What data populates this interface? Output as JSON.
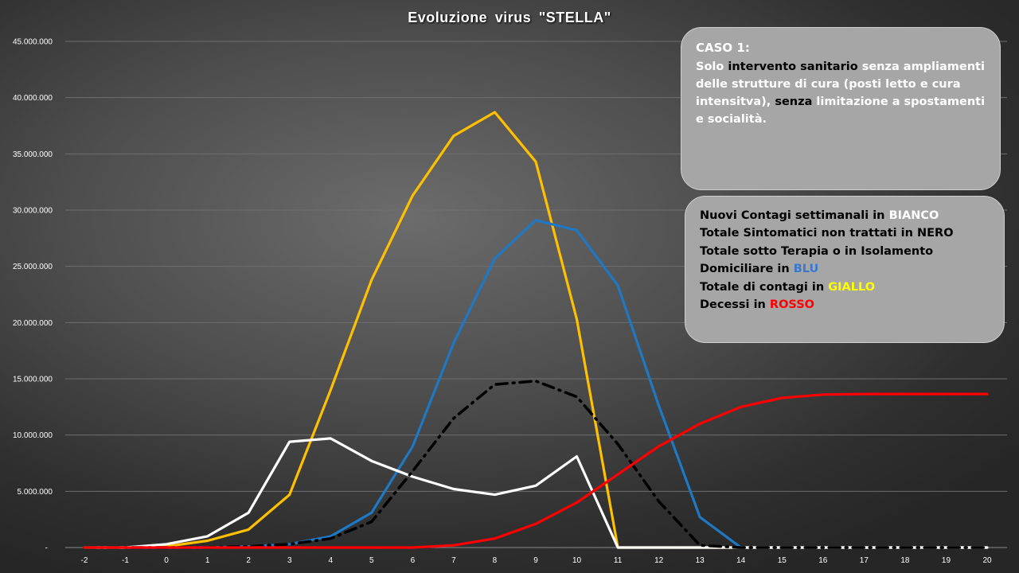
{
  "chart_data": {
    "type": "line",
    "title": "Evoluzione  virus  \"STELLA\"",
    "xlabel": "",
    "ylabel": "",
    "x": [
      -2,
      -1,
      0,
      1,
      2,
      3,
      4,
      5,
      6,
      7,
      8,
      9,
      10,
      11,
      12,
      13,
      14,
      15,
      16,
      17,
      18,
      19,
      20
    ],
    "x_ticks": [
      "-2",
      "-1",
      "0",
      "1",
      "2",
      "3",
      "4",
      "5",
      "6",
      "7",
      "8",
      "9",
      "10",
      "11",
      "12",
      "13",
      "14",
      "15",
      "16",
      "17",
      "18",
      "19",
      "20"
    ],
    "ylim": [
      0,
      45000000
    ],
    "y_ticks": [
      "-",
      "5.000.000",
      "10.000.000",
      "15.000.000",
      "20.000.000",
      "25.000.000",
      "30.000.000",
      "35.000.000",
      "40.000.000",
      "45.000.000"
    ],
    "grid": true,
    "series": [
      {
        "color": "#ffc000",
        "style": "solid",
        "values": [
          0,
          0,
          100000,
          600000,
          1600000,
          4700000,
          14000000,
          23800000,
          31300000,
          36600000,
          38700000,
          34300000,
          20300000,
          0,
          0,
          0,
          0,
          0,
          0,
          0,
          0,
          0,
          0
        ]
      },
      {
        "color": "#1f78c4",
        "style": "solid",
        "values": [
          0,
          0,
          0,
          0,
          100000,
          300000,
          1000000,
          3100000,
          9000000,
          18200000,
          25700000,
          29100000,
          28200000,
          23300000,
          12600000,
          2700000,
          0,
          0,
          0,
          0,
          0,
          0,
          0
        ]
      },
      {
        "color": "#ffffff",
        "style": "solid",
        "values": [
          0,
          0,
          300000,
          1000000,
          3100000,
          9400000,
          9700000,
          7700000,
          6300000,
          5200000,
          4700000,
          5500000,
          8100000,
          0,
          0,
          0,
          0,
          0,
          0,
          0,
          0,
          0,
          0
        ]
      },
      {
        "color": "#000000",
        "style": "dashdot",
        "values": [
          0,
          0,
          0,
          0,
          100000,
          300000,
          800000,
          2300000,
          6800000,
          11500000,
          14500000,
          14800000,
          13400000,
          9200000,
          4100000,
          200000,
          0,
          0,
          0,
          0,
          0,
          0,
          0
        ]
      },
      {
        "color": "#ff0000",
        "style": "solid",
        "values": [
          0,
          0,
          0,
          0,
          0,
          0,
          0,
          0,
          0,
          200000,
          800000,
          2100000,
          4000000,
          6500000,
          9000000,
          11000000,
          12500000,
          13300000,
          13600000,
          13650000,
          13650000,
          13650000,
          13650000
        ]
      }
    ]
  },
  "case_box": {
    "title": "CASO 1:",
    "t1": "Solo ",
    "t2": "intervento sanitario",
    "t3": " senza ampliamenti delle strutture di cura (posti letto e cura intensitva), ",
    "t4": "senza",
    "t5": " limitazione a spostamenti e socialità."
  },
  "legend_box": {
    "l1_text": "Nuovi Contagi settimanali in ",
    "l1_color": "BIANCO",
    "l2_text": "Totale Sintomatici non trattati in NERO",
    "l3_text": "Totale sotto Terapia o in Isolamento",
    "l4_text": "Domiciliare in ",
    "l4_color": "BLU",
    "l5_text": "Totale di contagi  in ",
    "l5_color": "GIALLO",
    "l6_text": "Decessi in ",
    "l6_color": "ROSSO"
  }
}
